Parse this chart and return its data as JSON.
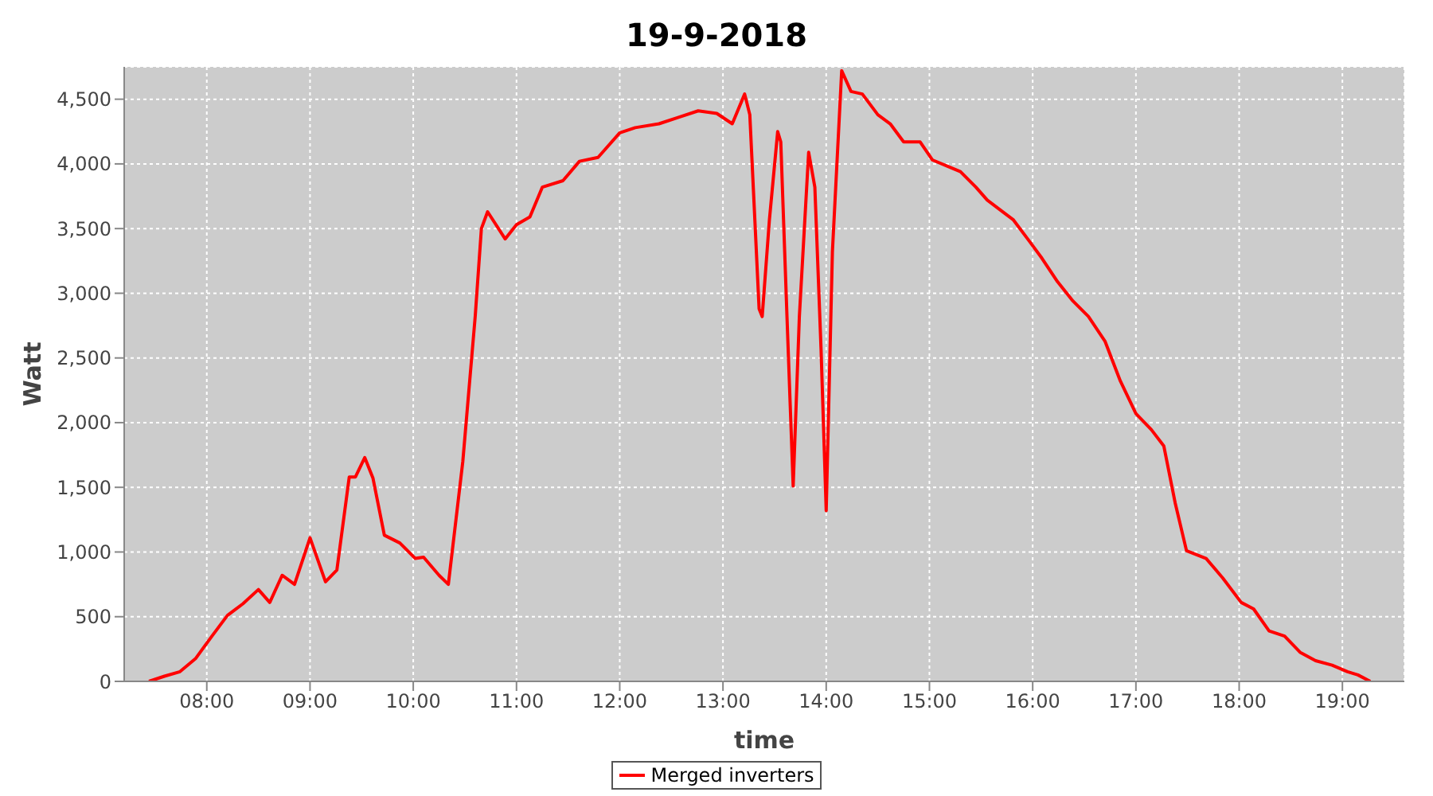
{
  "chart_data": {
    "type": "line",
    "title": "19-9-2018",
    "xlabel": "time",
    "ylabel": "Watt",
    "xlim": [
      7.2,
      19.6
    ],
    "xticks": [
      {
        "value": 8,
        "label": "08:00"
      },
      {
        "value": 9,
        "label": "09:00"
      },
      {
        "value": 10,
        "label": "10:00"
      },
      {
        "value": 11,
        "label": "11:00"
      },
      {
        "value": 12,
        "label": "12:00"
      },
      {
        "value": 13,
        "label": "13:00"
      },
      {
        "value": 14,
        "label": "14:00"
      },
      {
        "value": 15,
        "label": "15:00"
      },
      {
        "value": 16,
        "label": "16:00"
      },
      {
        "value": 17,
        "label": "17:00"
      },
      {
        "value": 18,
        "label": "18:00"
      },
      {
        "value": 19,
        "label": "19:00"
      }
    ],
    "ylim": [
      0,
      4750
    ],
    "yticks": [
      0,
      500,
      {
        "value": 1000,
        "label": "1,000"
      },
      {
        "value": 1500,
        "label": "1,500"
      },
      {
        "value": 2000,
        "label": "2,000"
      },
      {
        "value": 2500,
        "label": "2,500"
      },
      {
        "value": 3000,
        "label": "3,000"
      },
      {
        "value": 3500,
        "label": "3,500"
      },
      {
        "value": 4000,
        "label": "4,000"
      },
      {
        "value": 4500,
        "label": "4,500"
      }
    ],
    "grid": true,
    "legend": "bottom",
    "marker": "none",
    "line_style": "solid",
    "x": [
      7.44,
      7.59,
      7.74,
      7.89,
      8.05,
      8.2,
      8.35,
      8.5,
      8.61,
      8.73,
      8.85,
      9.0,
      9.15,
      9.26,
      9.38,
      9.44,
      9.53,
      9.61,
      9.72,
      9.87,
      10.02,
      10.1,
      10.25,
      10.34,
      10.48,
      10.6,
      10.66,
      10.72,
      10.89,
      11.0,
      11.13,
      11.25,
      11.45,
      11.61,
      11.79,
      12.0,
      12.15,
      12.38,
      12.57,
      12.76,
      12.94,
      13.09,
      13.21,
      13.26,
      13.35,
      13.38,
      13.45,
      13.53,
      13.56,
      13.62,
      13.68,
      13.74,
      13.83,
      13.89,
      13.95,
      14.0,
      14.06,
      14.15,
      14.24,
      14.35,
      14.5,
      14.62,
      14.75,
      14.91,
      15.03,
      15.18,
      15.3,
      15.45,
      15.56,
      15.71,
      15.81,
      15.97,
      16.09,
      16.24,
      16.39,
      16.54,
      16.7,
      16.85,
      17.0,
      17.15,
      17.27,
      17.38,
      17.49,
      17.68,
      17.84,
      18.02,
      18.14,
      18.29,
      18.44,
      18.59,
      18.74,
      18.9,
      19.05,
      19.15,
      19.27
    ],
    "series": [
      {
        "name": "Merged inverters",
        "color": "#ff0000",
        "values": [
          0,
          40,
          75,
          175,
          350,
          510,
          600,
          710,
          610,
          820,
          750,
          1110,
          770,
          860,
          1580,
          1580,
          1730,
          1570,
          1130,
          1070,
          950,
          960,
          820,
          750,
          1700,
          2820,
          3500,
          3630,
          3420,
          3530,
          3590,
          3820,
          3870,
          4020,
          4050,
          4240,
          4280,
          4310,
          4360,
          4410,
          4390,
          4310,
          4540,
          4380,
          2880,
          2820,
          3570,
          4250,
          4170,
          2820,
          1510,
          2820,
          4090,
          3820,
          2570,
          1320,
          3320,
          4720,
          4560,
          4540,
          4380,
          4310,
          4170,
          4170,
          4030,
          3980,
          3940,
          3820,
          3720,
          3630,
          3570,
          3400,
          3270,
          3090,
          2940,
          2820,
          2630,
          2320,
          2070,
          1945,
          1820,
          1380,
          1010,
          950,
          800,
          610,
          560,
          390,
          350,
          225,
          160,
          125,
          75,
          50,
          0
        ]
      }
    ]
  }
}
